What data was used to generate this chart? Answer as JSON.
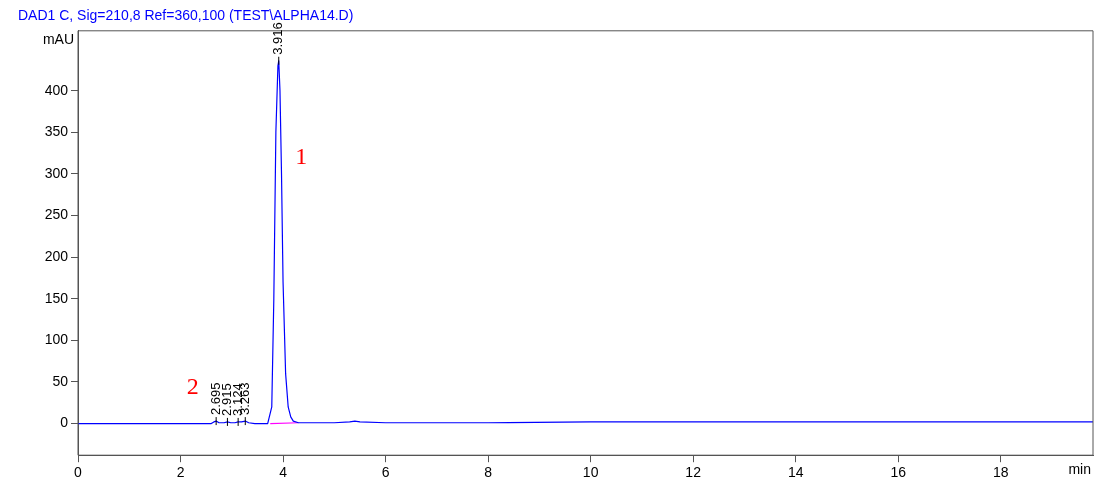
{
  "chart_data": {
    "type": "line",
    "title": "DAD1 C, Sig=210,8 Ref=360,100 (TEST\\ALPHA14.D)",
    "xlabel": "min",
    "ylabel": "mAU",
    "xlim": [
      0,
      19.8
    ],
    "xticks": [
      0,
      2,
      4,
      6,
      8,
      10,
      12,
      14,
      16,
      18
    ],
    "ylim": [
      -38,
      472
    ],
    "yticks": [
      0,
      50,
      100,
      150,
      200,
      250,
      300,
      350,
      400
    ],
    "grid": false,
    "legend": false,
    "marker": "none",
    "line_style": "solid",
    "series": [
      {
        "color": "#0000ff",
        "x": [
          0,
          1,
          2,
          2.6,
          2.65,
          2.695,
          2.75,
          2.85,
          2.915,
          2.98,
          3.06,
          3.124,
          3.19,
          3.263,
          3.33,
          3.45,
          3.7,
          3.78,
          3.82,
          3.86,
          3.9,
          3.916,
          3.94,
          3.97,
          4.0,
          4.05,
          4.1,
          4.15,
          4.2,
          4.3,
          5,
          5.3,
          5.4,
          5.5,
          6,
          8,
          10,
          12,
          14,
          16,
          18,
          19.8
        ],
        "values": [
          0,
          0,
          0,
          0,
          2,
          3,
          1,
          1,
          2,
          1,
          1,
          2,
          2,
          3,
          1,
          0,
          0,
          20,
          150,
          350,
          430,
          436,
          400,
          300,
          170,
          60,
          20,
          8,
          3,
          1,
          1,
          2,
          3,
          2,
          1,
          1,
          2,
          2,
          2,
          2,
          2,
          2
        ]
      },
      {
        "color": "#ff00ff",
        "x": [
          3.75,
          4.3
        ],
        "values": [
          0,
          1
        ]
      }
    ],
    "annotations": [
      {
        "text": "2.695",
        "x": 2.695,
        "y": 3
      },
      {
        "text": "2.915",
        "x": 2.915,
        "y": 2
      },
      {
        "text": "3.124",
        "x": 3.124,
        "y": 2
      },
      {
        "text": "3.263",
        "x": 3.263,
        "y": 3
      },
      {
        "text": "3.916",
        "x": 3.916,
        "y": 436
      },
      "1",
      "2"
    ]
  }
}
